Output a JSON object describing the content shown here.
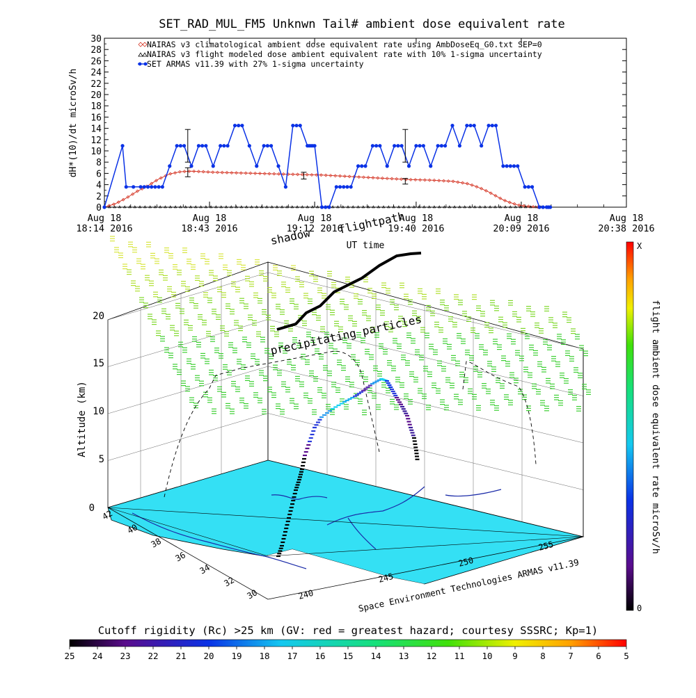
{
  "chart_data": [
    {
      "type": "line",
      "title": "SET_RAD_MUL_FM5 Unknwn Tail#  ambient dose equivalent rate",
      "ylabel": "dH*(10)/dt microSv/h",
      "xlabel": "UT time",
      "ylim": [
        0,
        30
      ],
      "yticks": [
        "0",
        "2",
        "4",
        "6",
        "8",
        "10",
        "12",
        "14",
        "16",
        "18",
        "20",
        "22",
        "24",
        "26",
        "28",
        "30"
      ],
      "xlim_minutes": [
        0,
        144
      ],
      "xticks": [
        {
          "m": 0,
          "l1": "Aug 18",
          "l2": "18:14 2016"
        },
        {
          "m": 29,
          "l1": "Aug 18",
          "l2": "18:43 2016"
        },
        {
          "m": 58,
          "l1": "Aug 18",
          "l2": "19:12 2016"
        },
        {
          "m": 86,
          "l1": "Aug 18",
          "l2": "19:40 2016"
        },
        {
          "m": 115,
          "l1": "Aug 18",
          "l2": "20:09 2016"
        },
        {
          "m": 144,
          "l1": "Aug 18",
          "l2": "20:38 2016"
        }
      ],
      "legend": [
        "NAIRAS v3 climatological ambient dose equivalent rate using AmbDoseEq_G0.txt SEP=0",
        "NAIRAS v3 flight modeled dose ambient equivalent rate with 10% 1-sigma uncertainty",
        "SET ARMAS v11.39 with 27% 1-sigma uncertainty"
      ],
      "series": [
        {
          "name": "NAIRAS v3 climatological ambient dose equivalent rate using AmbDoseEq_G0.txt SEP=0",
          "color": "#d63a2a",
          "x": [
            0,
            3,
            6,
            9,
            12,
            15,
            18,
            21,
            24,
            27,
            30,
            36,
            42,
            48,
            54,
            60,
            66,
            72,
            78,
            84,
            90,
            96,
            100,
            102,
            104,
            106,
            108,
            110,
            112,
            114,
            116,
            118,
            120,
            123
          ],
          "y": [
            0,
            0.6,
            1.6,
            2.8,
            3.8,
            5.0,
            5.9,
            6.3,
            6.4,
            6.3,
            6.2,
            6.1,
            6.0,
            5.9,
            5.8,
            5.7,
            5.5,
            5.3,
            5.1,
            4.9,
            4.8,
            4.6,
            4.2,
            3.8,
            3.3,
            2.7,
            2.0,
            1.3,
            0.8,
            0.4,
            0.2,
            0.1,
            0,
            0
          ]
        },
        {
          "name": "NAIRAS v3 flight modeled dose ambient equivalent rate with 10% 1-sigma uncertainty",
          "color": "#000000",
          "x": [
            0,
            10,
            20,
            30,
            40,
            50,
            60,
            70,
            80,
            90,
            100,
            110,
            123
          ],
          "y": [
            0,
            0,
            0,
            0,
            0,
            0,
            0,
            0,
            0,
            0,
            0,
            0,
            0
          ]
        },
        {
          "name": "SET ARMAS v11.39 with 27% 1-sigma uncertainty",
          "color": "#0a32e6",
          "x": [
            0,
            5,
            6,
            10,
            12,
            14,
            16,
            18,
            20,
            22,
            24,
            26,
            28,
            30,
            32,
            34,
            36,
            38,
            40,
            42,
            44,
            46,
            48,
            50,
            52,
            54,
            56,
            57,
            58,
            60,
            62,
            64,
            66,
            68,
            70,
            72,
            74,
            76,
            78,
            80,
            82,
            84,
            86,
            88,
            90,
            92,
            94,
            96,
            98,
            100,
            102,
            104,
            106,
            108,
            110,
            112,
            114,
            116,
            118,
            120,
            122,
            123
          ],
          "y": [
            0,
            10.9,
            3.6,
            3.6,
            3.6,
            3.6,
            3.6,
            7.3,
            10.9,
            10.9,
            7.3,
            10.9,
            10.9,
            7.3,
            10.9,
            10.9,
            14.5,
            14.5,
            10.9,
            7.3,
            10.9,
            10.9,
            7.3,
            3.6,
            14.5,
            14.5,
            10.9,
            10.9,
            10.9,
            0,
            0,
            3.6,
            3.6,
            3.6,
            7.3,
            7.3,
            10.9,
            10.9,
            7.3,
            10.9,
            10.9,
            7.3,
            10.9,
            10.9,
            7.3,
            10.9,
            10.9,
            14.5,
            10.9,
            14.5,
            14.5,
            10.9,
            14.5,
            14.5,
            7.3,
            7.3,
            7.3,
            3.6,
            3.6,
            0,
            0,
            0
          ]
        }
      ],
      "error_bars": [
        {
          "x": 23,
          "y": 6.2,
          "err": 0.8
        },
        {
          "x": 23,
          "y": 10.9,
          "err": 2.9
        },
        {
          "x": 55,
          "y": 5.6,
          "err": 0.6
        },
        {
          "x": 83,
          "y": 4.6,
          "err": 0.5
        },
        {
          "x": 83,
          "y": 10.9,
          "err": 2.9
        }
      ]
    },
    {
      "type": "scatter",
      "title": "",
      "ylabel": "Altitude (km)",
      "zticks": [
        "0",
        "5",
        "10",
        "15",
        "20"
      ],
      "lat_ticks": [
        "42",
        "40",
        "38",
        "36",
        "34",
        "32",
        "30"
      ],
      "lon_ticks": [
        "240",
        "245",
        "250",
        "255"
      ],
      "annotations": [
        "shadow",
        "flightpath",
        "precipitating particles",
        "Space Environment Technologies ARMAS v11.39"
      ],
      "colorbar_label": "flight ambient dose equivalent rate microSv/h",
      "colorbar_ticks": [
        "X",
        "0"
      ]
    },
    {
      "type": "heatmap",
      "title": "Cutoff rigidity (Rc) >25 km (GV: red = greatest hazard; courtesy SSSRC; Kp=1)",
      "colorbar_ticks": [
        "25",
        "24",
        "23",
        "22",
        "21",
        "20",
        "19",
        "18",
        "17",
        "16",
        "15",
        "14",
        "13",
        "12",
        "11",
        "10",
        "9",
        "8",
        "7",
        "6",
        "5"
      ]
    }
  ],
  "colors": {
    "armas": "#0a32e6",
    "nairas": "#d63a2a",
    "ground": "#34e0f4"
  }
}
